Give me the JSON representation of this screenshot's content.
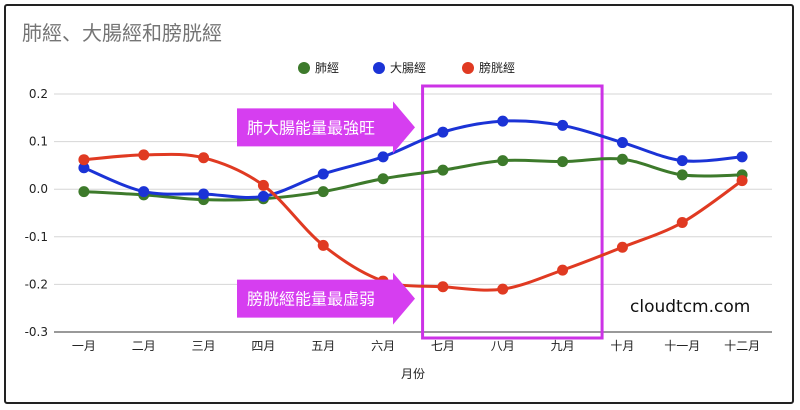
{
  "chart_data": {
    "type": "line",
    "title": "肺經、大腸經和膀胱經",
    "xlabel": "月份",
    "ylabel": "",
    "ylim": [
      -0.3,
      0.2
    ],
    "yticks": [
      "0.2",
      "0.1",
      "0.0",
      "-0.1",
      "-0.2",
      "-0.3"
    ],
    "ytick_values": [
      0.2,
      0.1,
      0.0,
      -0.1,
      -0.2,
      -0.3
    ],
    "grid": true,
    "legend_position": "top",
    "categories": [
      "一月",
      "二月",
      "三月",
      "四月",
      "五月",
      "六月",
      "七月",
      "八月",
      "九月",
      "十月",
      "十一月",
      "十二月"
    ],
    "series": [
      {
        "name": "肺經",
        "color": "#3d7a2b",
        "values": [
          -0.005,
          -0.012,
          -0.022,
          -0.02,
          -0.005,
          0.022,
          0.04,
          0.06,
          0.058,
          0.063,
          0.03,
          0.03
        ]
      },
      {
        "name": "大腸經",
        "color": "#1b33d6",
        "values": [
          0.045,
          -0.005,
          -0.01,
          -0.015,
          0.032,
          0.068,
          0.12,
          0.143,
          0.134,
          0.098,
          0.06,
          0.068
        ]
      },
      {
        "name": "膀胱經",
        "color": "#e03a22",
        "values": [
          0.062,
          0.072,
          0.066,
          0.008,
          -0.118,
          -0.193,
          -0.205,
          -0.21,
          -0.17,
          -0.122,
          -0.07,
          0.018
        ]
      }
    ],
    "annotations": {
      "highlight_range": [
        "七月",
        "九月"
      ],
      "highlight_color": "#cc33e6",
      "arrow_color": "#d63ef0",
      "callouts": [
        {
          "text": "肺大腸能量最強旺",
          "y_value": 0.13
        },
        {
          "text": "膀胱經能量最虛弱",
          "y_value": -0.23
        }
      ]
    },
    "watermark": "cloudtcm.com"
  }
}
